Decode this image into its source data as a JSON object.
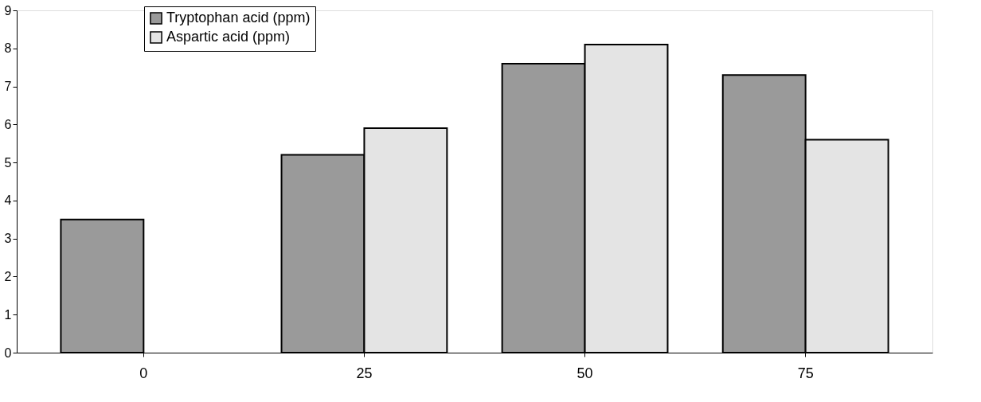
{
  "chart_data": {
    "type": "bar",
    "categories": [
      "0",
      "25",
      "50",
      "75"
    ],
    "series": [
      {
        "name": "Tryptophan acid (ppm)",
        "color": "#9a9a9a",
        "values": [
          3.5,
          5.2,
          7.6,
          7.3
        ]
      },
      {
        "name": "Aspartic acid (ppm)",
        "color": "#e4e4e4",
        "values": [
          null,
          5.9,
          8.1,
          5.6
        ]
      }
    ],
    "ylim": [
      0,
      9
    ],
    "yticks": [
      0,
      1,
      2,
      3,
      4,
      5,
      6,
      7,
      8,
      9
    ],
    "grid": false,
    "legend": "top left"
  }
}
